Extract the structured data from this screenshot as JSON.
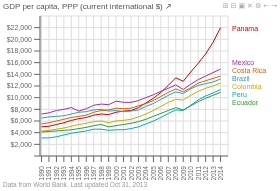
{
  "chart_data": {
    "type": "line",
    "title": "GDP per capita, PPP (current international $) ↗",
    "annotations": [
      "Data from World Bank. Last updated Oct 31, 2013",
      "⊞",
      "⊟",
      "▣",
      "✕",
      "⚙",
      "←",
      "→"
    ],
    "x": [
      1990,
      1991,
      1992,
      1993,
      1994,
      1995,
      1996,
      1997,
      1998,
      1999,
      2000,
      2001,
      2002,
      2003,
      2004,
      2005,
      2006,
      2007,
      2008,
      2009,
      2010,
      2011,
      2012,
      2013,
      2014
    ],
    "series": [
      {
        "name": "Panama",
        "color": "#cc0000",
        "values": [
          5000,
          5100,
          5400,
          5700,
          6100,
          6400,
          6600,
          7000,
          7200,
          7100,
          7500,
          7700,
          7800,
          8300,
          9100,
          9900,
          10900,
          12100,
          13400,
          12800,
          14400,
          15900,
          17500,
          19500,
          22000
        ]
      },
      {
        "name": "Mexico",
        "color": "#993399",
        "values": [
          7200,
          7400,
          7800,
          8000,
          8300,
          7700,
          8100,
          8700,
          8900,
          8800,
          9400,
          9200,
          9200,
          9500,
          10000,
          10500,
          11100,
          11600,
          12200,
          11400,
          12300,
          13100,
          13700,
          14300,
          14900
        ]
      },
      {
        "name": "Brazil",
        "color": "#3399cc",
        "values": [
          6500,
          6700,
          6800,
          6900,
          7200,
          7500,
          7600,
          7900,
          8000,
          7700,
          7800,
          7600,
          7700,
          7900,
          8500,
          9000,
          9700,
          10400,
          11000,
          10700,
          11500,
          12100,
          12400,
          12700,
          13200
        ]
      },
      {
        "name": "Costa Rica",
        "color": "#cc6600",
        "values": [
          5500,
          5700,
          6000,
          6300,
          6600,
          6800,
          7000,
          7500,
          7800,
          7900,
          8200,
          8100,
          8200,
          8600,
          9000,
          9500,
          10200,
          10900,
          11500,
          11000,
          11700,
          12500,
          12900,
          13300,
          13700
        ]
      },
      {
        "name": "Colombia",
        "color": "#ccaa00",
        "values": [
          4300,
          4400,
          4600,
          4800,
          5100,
          5400,
          5600,
          5900,
          6000,
          5700,
          6000,
          6100,
          6300,
          6700,
          7200,
          7800,
          8500,
          9200,
          9700,
          9600,
          10400,
          11100,
          11600,
          12000,
          12500
        ]
      },
      {
        "name": "Peru",
        "color": "#00aacc",
        "values": [
          3100,
          3100,
          3300,
          3600,
          3900,
          4100,
          4300,
          4600,
          4600,
          4400,
          4500,
          4500,
          4700,
          5000,
          5500,
          6000,
          6600,
          7300,
          7900,
          7800,
          8700,
          9600,
          10300,
          10800,
          11400
        ]
      },
      {
        "name": "Ecuador",
        "color": "#339933",
        "values": [
          4100,
          4200,
          4300,
          4400,
          4500,
          4700,
          4900,
          5200,
          5400,
          5000,
          5200,
          5400,
          5600,
          5900,
          6300,
          6800,
          7300,
          7800,
          8300,
          7900,
          8600,
          9300,
          9900,
          10400,
          10900
        ]
      }
    ],
    "xlim": [
      1989.8,
      2015
    ],
    "xticks": [
      1990,
      1991,
      1992,
      1993,
      1994,
      1995,
      1996,
      1997,
      1998,
      1999,
      2000,
      2001,
      2002,
      2003,
      2004,
      2005,
      2006,
      2007,
      2008,
      2009,
      2010,
      2011,
      2012,
      2013,
      2014
    ],
    "ylim": [
      0,
      24000
    ],
    "yticks": [
      {
        "value": 0,
        "label": ""
      },
      {
        "value": 2000,
        "label": "$2,000"
      },
      {
        "value": 4000,
        "label": "$4,000"
      },
      {
        "value": 6000,
        "label": "$6,000"
      },
      {
        "value": 8000,
        "label": "$8,000"
      },
      {
        "value": 10000,
        "label": "$10,000"
      },
      {
        "value": 12000,
        "label": "$12,000"
      },
      {
        "value": 14000,
        "label": "$14,000"
      },
      {
        "value": 16000,
        "label": "$16,000"
      },
      {
        "value": 18000,
        "label": "$18,000"
      },
      {
        "value": 20000,
        "label": "$20,000"
      },
      {
        "value": 22000,
        "label": "$22,000"
      }
    ],
    "grid": true
  }
}
